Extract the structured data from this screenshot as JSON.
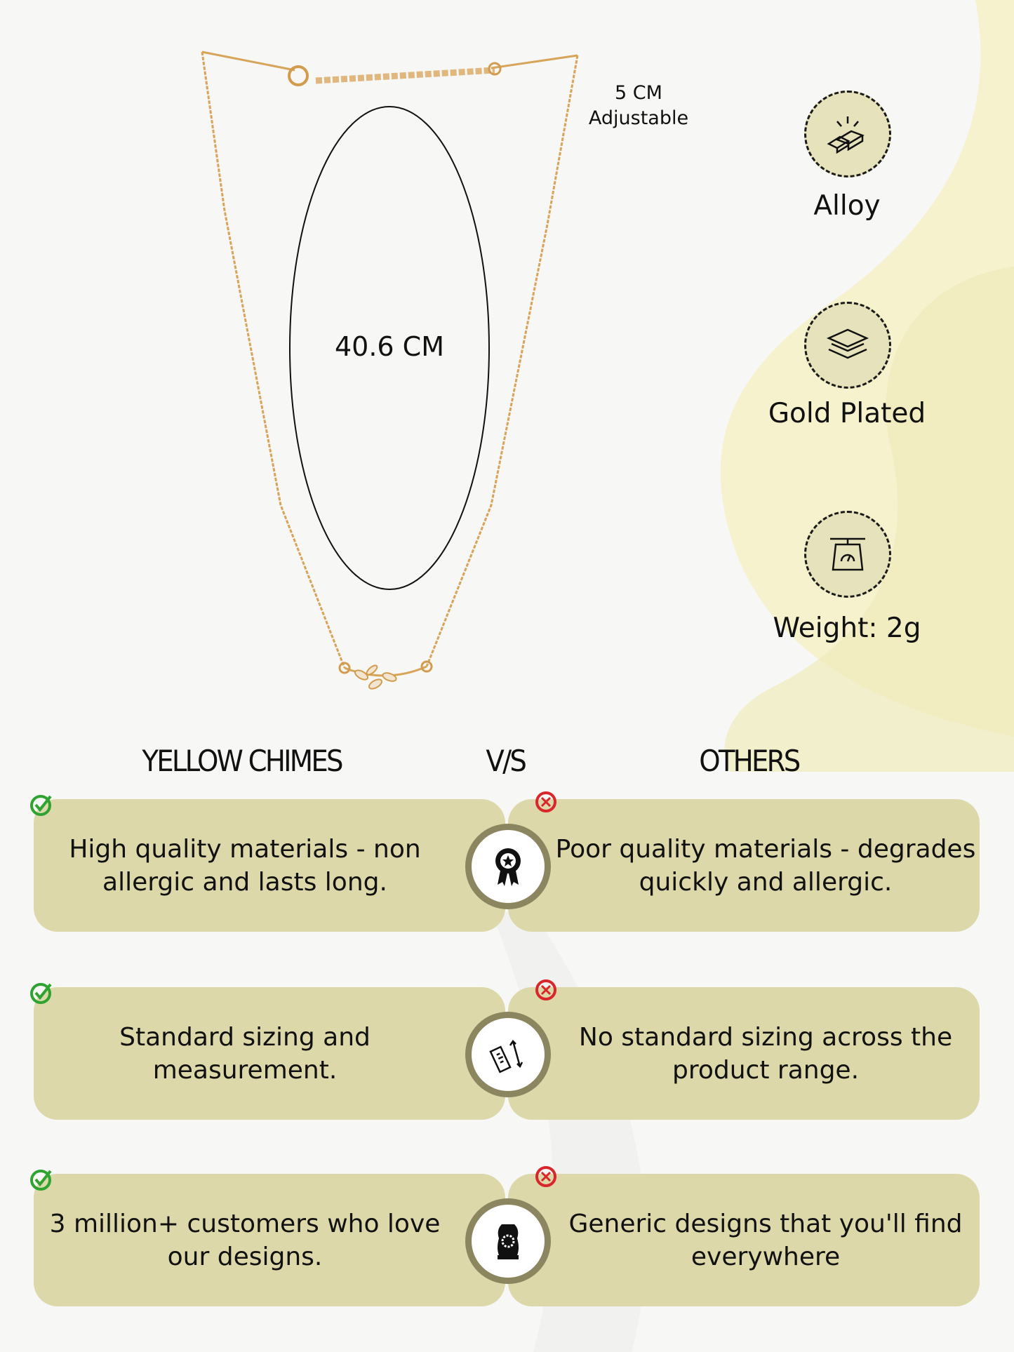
{
  "necklace": {
    "length_label": "40.6 CM",
    "extension_line1": "5 CM",
    "extension_line2": "Adjustable"
  },
  "features": [
    {
      "label": "Alloy",
      "icon": "gold-bars-icon"
    },
    {
      "label": "Gold Plated",
      "icon": "layers-icon"
    },
    {
      "label": "Weight: 2g",
      "icon": "scale-icon"
    }
  ],
  "comparison": {
    "left_heading": "YELLOW CHIMES",
    "vs_label": "V/S",
    "right_heading": "OTHERS",
    "rows": [
      {
        "ours": "High quality materials - non allergic and lasts long.",
        "others": "Poor quality materials - degrades quickly and allergic.",
        "icon": "award-ribbon-icon"
      },
      {
        "ours": "Standard sizing and measurement.",
        "others": "No standard sizing across the product range.",
        "icon": "ruler-icon"
      },
      {
        "ours": "3 million+ customers who love our designs.",
        "others": "Generic designs that you'll find everywhere",
        "icon": "jewelry-display-icon"
      }
    ]
  },
  "colors": {
    "box": "#dcd8a9",
    "check": "#2fa32f",
    "cross": "#d9262b",
    "accent_bg": "#f3efc6"
  }
}
